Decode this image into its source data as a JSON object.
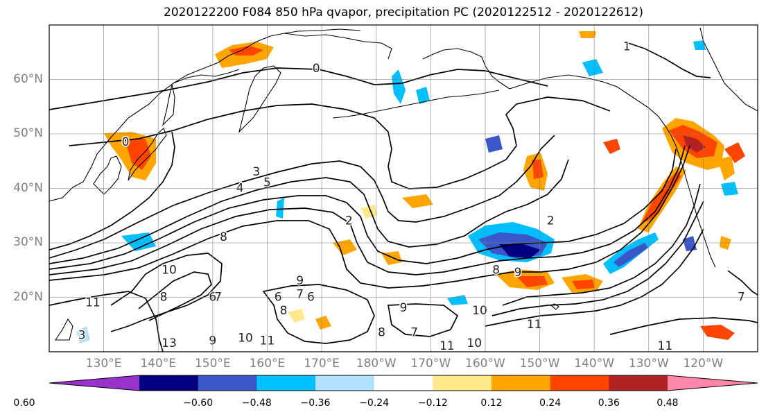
{
  "title": "2020122200 F084 850 hPa qvapor, precipitation PC (2020122512 - 2020122612)",
  "map": {
    "projection": "Plate Carree",
    "lon_range": [
      120,
      250
    ],
    "lat_range": [
      10,
      70
    ],
    "lat_ticks": [
      "60°N",
      "50°N",
      "40°N",
      "30°N",
      "20°N"
    ],
    "lon_ticks": [
      "130°E",
      "140°E",
      "150°E",
      "160°E",
      "170°E",
      "180°W",
      "170°W",
      "160°W",
      "150°W",
      "140°W",
      "130°W",
      "120°W"
    ],
    "contour_labels": [
      {
        "text": "0",
        "lon": 169,
        "lat": 62
      },
      {
        "text": "0",
        "lon": 134,
        "lat": 48.5
      },
      {
        "text": "1",
        "lon": 226,
        "lat": 66
      },
      {
        "text": "3",
        "lon": 158,
        "lat": 43
      },
      {
        "text": "4",
        "lon": 155,
        "lat": 40
      },
      {
        "text": "5",
        "lon": 160,
        "lat": 41
      },
      {
        "text": "2",
        "lon": 175,
        "lat": 34
      },
      {
        "text": "2",
        "lon": 212,
        "lat": 34
      },
      {
        "text": "8",
        "lon": 152,
        "lat": 31
      },
      {
        "text": "8",
        "lon": 202,
        "lat": 25
      },
      {
        "text": "9",
        "lon": 206,
        "lat": 24.5
      },
      {
        "text": "9",
        "lon": 166,
        "lat": 23
      },
      {
        "text": "9",
        "lon": 185,
        "lat": 18
      },
      {
        "text": "10",
        "lon": 142,
        "lat": 25
      },
      {
        "text": "11",
        "lon": 128,
        "lat": 19
      },
      {
        "text": "6",
        "lon": 150,
        "lat": 20
      },
      {
        "text": "6",
        "lon": 162,
        "lat": 20
      },
      {
        "text": "6",
        "lon": 168,
        "lat": 20
      },
      {
        "text": "7",
        "lon": 151,
        "lat": 20
      },
      {
        "text": "7",
        "lon": 166,
        "lat": 20.5
      },
      {
        "text": "8",
        "lon": 163,
        "lat": 17.5
      },
      {
        "text": "8",
        "lon": 141,
        "lat": 20
      },
      {
        "text": "10",
        "lon": 199,
        "lat": 17.5
      },
      {
        "text": "11",
        "lon": 209,
        "lat": 15
      },
      {
        "text": "8",
        "lon": 181,
        "lat": 13.5
      },
      {
        "text": "7",
        "lon": 187,
        "lat": 13.5
      },
      {
        "text": "11",
        "lon": 193,
        "lat": 11
      },
      {
        "text": "10",
        "lon": 198,
        "lat": 11.5
      },
      {
        "text": "10",
        "lon": 156,
        "lat": 12.5
      },
      {
        "text": "11",
        "lon": 160,
        "lat": 12
      },
      {
        "text": "13",
        "lon": 142,
        "lat": 11.5
      },
      {
        "text": "9",
        "lon": 150,
        "lat": 12
      },
      {
        "text": "3",
        "lon": 126,
        "lat": 13
      },
      {
        "text": "11",
        "lon": 233,
        "lat": 11
      },
      {
        "text": "7",
        "lon": 247,
        "lat": 20
      }
    ]
  },
  "colorbar": {
    "labels": [
      "−0.60",
      "−0.48",
      "−0.36",
      "−0.24",
      "−0.12",
      "0.12",
      "0.24",
      "0.36",
      "0.48",
      "0.60"
    ],
    "colors": [
      "#9932cc",
      "#000080",
      "#3a56c8",
      "#00bfff",
      "#b0e2ff",
      "#ffffff",
      "#ffe98a",
      "#ffa500",
      "#ff4500",
      "#b22222",
      "#ff88aa"
    ]
  },
  "palette": {
    "pos_weak": "#ffe98a",
    "pos_mid": "#ffa500",
    "pos_strong": "#ff4500",
    "pos_max": "#b22222",
    "neg_weak": "#b0e2ff",
    "neg_mid": "#00bfff",
    "neg_strong": "#3a56c8",
    "neg_max": "#000080"
  }
}
